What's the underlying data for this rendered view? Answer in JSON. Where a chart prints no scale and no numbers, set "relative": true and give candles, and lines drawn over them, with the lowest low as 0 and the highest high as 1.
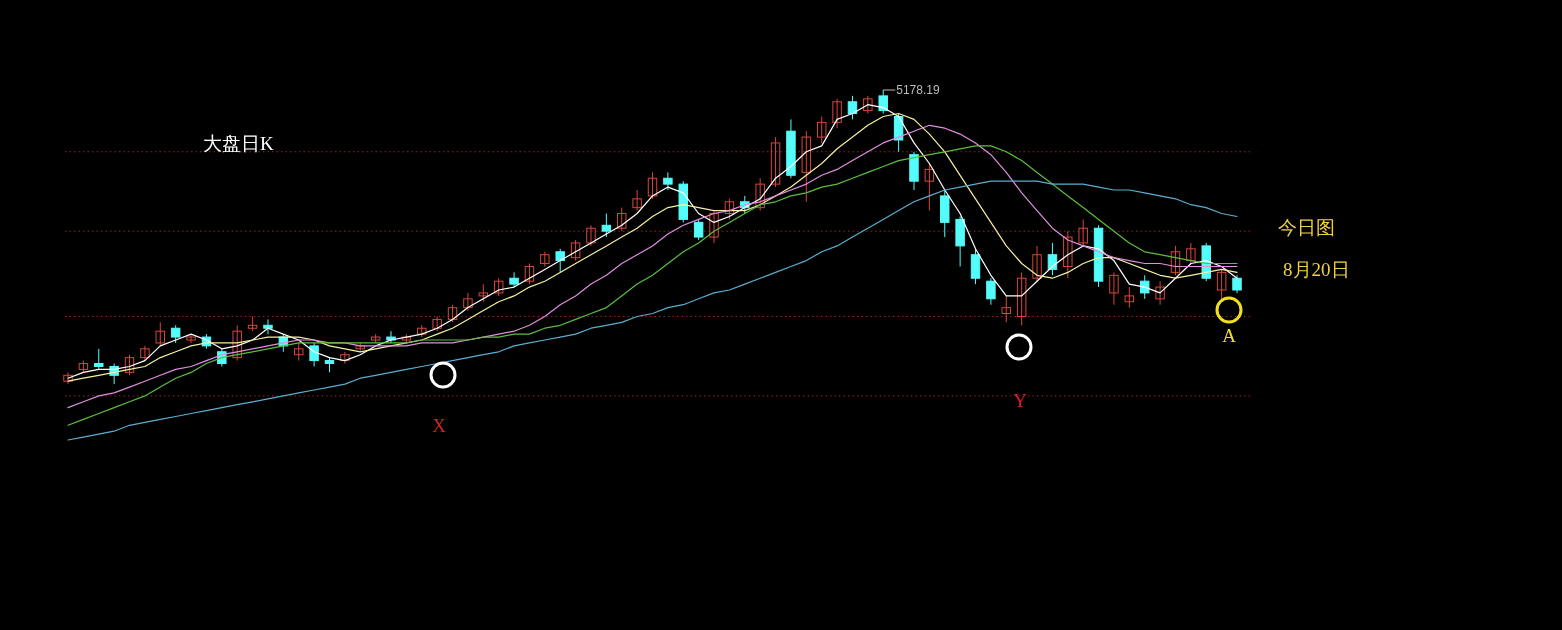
{
  "chart_data": {
    "type": "candlestick",
    "title": "大盘日K",
    "relative": true,
    "categories": [
      null,
      null,
      null,
      null,
      null,
      null,
      null,
      null,
      null,
      null,
      null,
      null,
      null,
      null,
      null,
      null,
      null,
      null,
      null,
      null,
      null,
      null,
      null,
      null,
      null,
      null,
      null,
      null,
      null,
      null,
      null,
      null,
      null,
      null,
      null,
      null,
      null,
      null,
      null,
      null,
      null,
      null,
      null,
      null,
      null,
      null,
      null,
      null,
      null,
      null,
      null,
      null,
      null,
      null,
      null,
      null,
      null,
      null,
      null,
      null,
      null,
      null,
      null,
      null,
      null,
      null,
      null,
      null,
      null,
      null,
      null,
      null,
      null,
      null,
      null,
      null,
      null
    ],
    "ohlc": [
      [
        0.01,
        0.04,
        0.0,
        0.03
      ],
      [
        0.05,
        0.08,
        0.04,
        0.07
      ],
      [
        0.07,
        0.12,
        0.05,
        0.06
      ],
      [
        0.06,
        0.07,
        0.0,
        0.03
      ],
      [
        0.04,
        0.1,
        0.03,
        0.09
      ],
      [
        0.09,
        0.13,
        0.08,
        0.12
      ],
      [
        0.14,
        0.21,
        0.13,
        0.18
      ],
      [
        0.19,
        0.2,
        0.14,
        0.16
      ],
      [
        0.15,
        0.17,
        0.14,
        0.16
      ],
      [
        0.16,
        0.17,
        0.12,
        0.13
      ],
      [
        0.11,
        0.12,
        0.06,
        0.07
      ],
      [
        0.09,
        0.2,
        0.08,
        0.18
      ],
      [
        0.19,
        0.23,
        0.18,
        0.2
      ],
      [
        0.2,
        0.22,
        0.17,
        0.19
      ],
      [
        0.16,
        0.17,
        0.11,
        0.13
      ],
      [
        0.1,
        0.14,
        0.08,
        0.12
      ],
      [
        0.13,
        0.14,
        0.06,
        0.08
      ],
      [
        0.08,
        0.09,
        0.04,
        0.07
      ],
      [
        0.08,
        0.11,
        0.07,
        0.1
      ],
      [
        0.12,
        0.14,
        0.11,
        0.13
      ],
      [
        0.15,
        0.17,
        0.14,
        0.16
      ],
      [
        0.16,
        0.18,
        0.14,
        0.15
      ],
      [
        0.15,
        0.17,
        0.14,
        0.16
      ],
      [
        0.17,
        0.2,
        0.16,
        0.19
      ],
      [
        0.19,
        0.23,
        0.18,
        0.22
      ],
      [
        0.22,
        0.27,
        0.21,
        0.26
      ],
      [
        0.26,
        0.31,
        0.25,
        0.29
      ],
      [
        0.3,
        0.34,
        0.28,
        0.31
      ],
      [
        0.31,
        0.36,
        0.3,
        0.35
      ],
      [
        0.36,
        0.38,
        0.33,
        0.34
      ],
      [
        0.35,
        0.41,
        0.34,
        0.4
      ],
      [
        0.41,
        0.45,
        0.4,
        0.44
      ],
      [
        0.45,
        0.46,
        0.38,
        0.42
      ],
      [
        0.43,
        0.49,
        0.42,
        0.48
      ],
      [
        0.48,
        0.54,
        0.47,
        0.53
      ],
      [
        0.54,
        0.58,
        0.5,
        0.52
      ],
      [
        0.53,
        0.6,
        0.52,
        0.58
      ],
      [
        0.6,
        0.66,
        0.59,
        0.63
      ],
      [
        0.64,
        0.72,
        0.63,
        0.7
      ],
      [
        0.7,
        0.72,
        0.66,
        0.68
      ],
      [
        0.68,
        0.69,
        0.55,
        0.56
      ],
      [
        0.55,
        0.56,
        0.49,
        0.5
      ],
      [
        0.5,
        0.59,
        0.48,
        0.58
      ],
      [
        0.58,
        0.63,
        0.56,
        0.62
      ],
      [
        0.62,
        0.64,
        0.58,
        0.6
      ],
      [
        0.6,
        0.7,
        0.59,
        0.68
      ],
      [
        0.68,
        0.84,
        0.67,
        0.82
      ],
      [
        0.86,
        0.9,
        0.7,
        0.71
      ],
      [
        0.72,
        0.86,
        0.62,
        0.84
      ],
      [
        0.84,
        0.91,
        0.82,
        0.89
      ],
      [
        0.89,
        0.97,
        0.87,
        0.96
      ],
      [
        0.96,
        0.98,
        0.9,
        0.92
      ],
      [
        0.93,
        0.98,
        0.92,
        0.97
      ],
      [
        0.98,
        1.0,
        0.92,
        0.93
      ],
      [
        0.91,
        0.92,
        0.79,
        0.83
      ],
      [
        0.78,
        0.79,
        0.66,
        0.69
      ],
      [
        0.69,
        0.75,
        0.59,
        0.73
      ],
      [
        0.64,
        0.66,
        0.5,
        0.55
      ],
      [
        0.56,
        0.57,
        0.4,
        0.47
      ],
      [
        0.44,
        0.46,
        0.34,
        0.36
      ],
      [
        0.35,
        0.36,
        0.27,
        0.29
      ],
      [
        0.24,
        0.3,
        0.21,
        0.26
      ],
      [
        0.23,
        0.38,
        0.2,
        0.36
      ],
      [
        0.36,
        0.47,
        0.35,
        0.44
      ],
      [
        0.44,
        0.48,
        0.37,
        0.39
      ],
      [
        0.4,
        0.52,
        0.36,
        0.5
      ],
      [
        0.48,
        0.56,
        0.47,
        0.53
      ],
      [
        0.53,
        0.54,
        0.33,
        0.35
      ],
      [
        0.31,
        0.38,
        0.27,
        0.37
      ],
      [
        0.28,
        0.33,
        0.26,
        0.3
      ],
      [
        0.35,
        0.37,
        0.29,
        0.31
      ],
      [
        0.29,
        0.35,
        0.27,
        0.33
      ],
      [
        0.38,
        0.47,
        0.37,
        0.45
      ],
      [
        0.42,
        0.48,
        0.41,
        0.46
      ],
      [
        0.47,
        0.48,
        0.35,
        0.36
      ],
      [
        0.32,
        0.39,
        0.28,
        0.38
      ],
      [
        0.36,
        0.37,
        0.31,
        0.32
      ]
    ],
    "series": [
      {
        "type": "line",
        "color": "#ffffff",
        "values": [
          0.02,
          0.04,
          0.05,
          0.05,
          0.06,
          0.08,
          0.13,
          0.15,
          0.17,
          0.15,
          0.12,
          0.13,
          0.15,
          0.19,
          0.17,
          0.15,
          0.11,
          0.09,
          0.08,
          0.1,
          0.13,
          0.15,
          0.16,
          0.17,
          0.19,
          0.22,
          0.26,
          0.29,
          0.32,
          0.33,
          0.36,
          0.39,
          0.42,
          0.45,
          0.48,
          0.51,
          0.54,
          0.58,
          0.64,
          0.67,
          0.65,
          0.58,
          0.55,
          0.57,
          0.6,
          0.63,
          0.7,
          0.74,
          0.79,
          0.81,
          0.9,
          0.92,
          0.95,
          0.94,
          0.91,
          0.82,
          0.75,
          0.66,
          0.58,
          0.46,
          0.37,
          0.3,
          0.3,
          0.35,
          0.4,
          0.44,
          0.47,
          0.46,
          0.42,
          0.34,
          0.33,
          0.31,
          0.36,
          0.41,
          0.42,
          0.4,
          0.36
        ]
      },
      {
        "type": "line",
        "color": "#f5f0a0",
        "values": [
          0.01,
          0.02,
          0.03,
          0.04,
          0.05,
          0.06,
          0.09,
          0.11,
          0.13,
          0.14,
          0.14,
          0.14,
          0.15,
          0.16,
          0.16,
          0.16,
          0.15,
          0.13,
          0.12,
          0.11,
          0.12,
          0.13,
          0.14,
          0.15,
          0.17,
          0.19,
          0.22,
          0.25,
          0.28,
          0.3,
          0.33,
          0.35,
          0.38,
          0.41,
          0.44,
          0.47,
          0.5,
          0.53,
          0.57,
          0.6,
          0.61,
          0.6,
          0.59,
          0.59,
          0.59,
          0.61,
          0.64,
          0.67,
          0.71,
          0.75,
          0.8,
          0.84,
          0.88,
          0.91,
          0.92,
          0.9,
          0.85,
          0.79,
          0.71,
          0.63,
          0.55,
          0.47,
          0.41,
          0.37,
          0.36,
          0.38,
          0.41,
          0.43,
          0.43,
          0.41,
          0.39,
          0.37,
          0.36,
          0.37,
          0.38,
          0.39,
          0.38
        ]
      },
      {
        "type": "line",
        "color": "#e08ee0",
        "values": [
          -0.08,
          -0.06,
          -0.04,
          -0.03,
          -0.01,
          0.01,
          0.03,
          0.05,
          0.06,
          0.08,
          0.1,
          0.11,
          0.12,
          0.13,
          0.14,
          0.15,
          0.15,
          0.14,
          0.14,
          0.13,
          0.13,
          0.13,
          0.13,
          0.14,
          0.14,
          0.14,
          0.15,
          0.16,
          0.17,
          0.18,
          0.2,
          0.23,
          0.27,
          0.3,
          0.34,
          0.37,
          0.41,
          0.44,
          0.47,
          0.51,
          0.54,
          0.56,
          0.58,
          0.59,
          0.61,
          0.62,
          0.64,
          0.66,
          0.68,
          0.71,
          0.73,
          0.76,
          0.79,
          0.82,
          0.84,
          0.86,
          0.88,
          0.87,
          0.85,
          0.82,
          0.78,
          0.72,
          0.65,
          0.59,
          0.53,
          0.49,
          0.47,
          0.45,
          0.43,
          0.42,
          0.41,
          0.41,
          0.4,
          0.4,
          0.4,
          0.4,
          0.4
        ]
      },
      {
        "type": "line",
        "color": "#5cbf3c",
        "values": [
          -0.14,
          -0.12,
          -0.1,
          -0.08,
          -0.06,
          -0.04,
          -0.01,
          0.02,
          0.04,
          0.07,
          0.09,
          0.1,
          0.11,
          0.12,
          0.13,
          0.14,
          0.14,
          0.14,
          0.14,
          0.14,
          0.14,
          0.14,
          0.14,
          0.15,
          0.15,
          0.15,
          0.15,
          0.16,
          0.16,
          0.17,
          0.17,
          0.19,
          0.2,
          0.22,
          0.24,
          0.26,
          0.3,
          0.34,
          0.37,
          0.41,
          0.45,
          0.48,
          0.52,
          0.55,
          0.58,
          0.61,
          0.62,
          0.64,
          0.65,
          0.67,
          0.68,
          0.7,
          0.72,
          0.74,
          0.76,
          0.77,
          0.78,
          0.79,
          0.8,
          0.81,
          0.81,
          0.79,
          0.76,
          0.72,
          0.68,
          0.64,
          0.6,
          0.56,
          0.52,
          0.48,
          0.45,
          0.44,
          0.43,
          0.42,
          0.41,
          0.41,
          0.41
        ]
      },
      {
        "type": "line",
        "color": "#5aaed0",
        "values": [
          -0.19,
          -0.18,
          -0.17,
          -0.16,
          -0.14,
          -0.13,
          -0.12,
          -0.11,
          -0.1,
          -0.09,
          -0.08,
          -0.07,
          -0.06,
          -0.05,
          -0.04,
          -0.03,
          -0.02,
          -0.01,
          0.0,
          0.02,
          0.03,
          0.04,
          0.05,
          0.06,
          0.07,
          0.08,
          0.09,
          0.1,
          0.11,
          0.13,
          0.14,
          0.15,
          0.16,
          0.17,
          0.19,
          0.2,
          0.21,
          0.23,
          0.24,
          0.26,
          0.27,
          0.29,
          0.31,
          0.32,
          0.34,
          0.36,
          0.38,
          0.4,
          0.42,
          0.45,
          0.47,
          0.5,
          0.53,
          0.56,
          0.59,
          0.62,
          0.64,
          0.66,
          0.67,
          0.68,
          0.69,
          0.69,
          0.69,
          0.69,
          0.68,
          0.68,
          0.68,
          0.67,
          0.66,
          0.66,
          0.65,
          0.64,
          0.63,
          0.61,
          0.6,
          0.58,
          0.57
        ]
      }
    ],
    "ref_lines": [
      {
        "axis": "y",
        "value": 0.23,
        "color": "#9a2020",
        "line_style": "dotted"
      },
      {
        "axis": "y",
        "value": 0.52,
        "color": "#9a2020",
        "line_style": "dotted"
      },
      {
        "axis": "y",
        "value": 0.79,
        "color": "#9a2020",
        "line_style": "dotted"
      },
      {
        "axis": "y",
        "value": -0.04,
        "color": "#9a2020",
        "line_style": "dotted"
      }
    ],
    "annotations": [
      "5178.19",
      "X",
      "Y",
      "A",
      "今日图",
      "8月20日"
    ]
  }
}
